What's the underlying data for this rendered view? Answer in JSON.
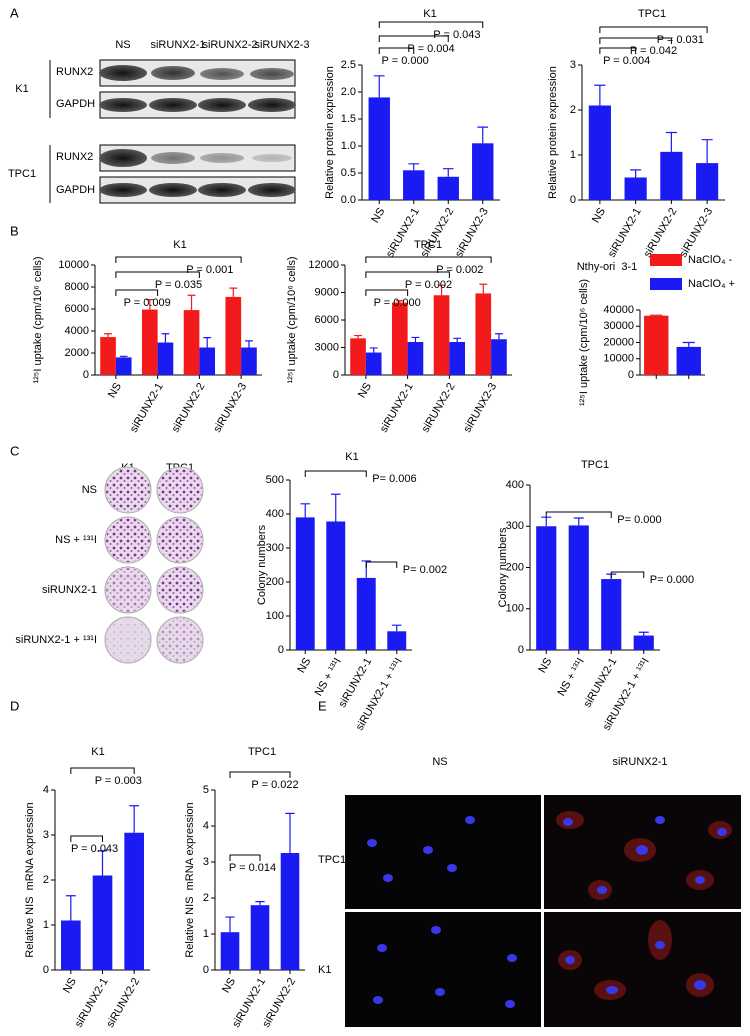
{
  "figure": {
    "panel_labels": [
      "A",
      "B",
      "C",
      "D",
      "E"
    ],
    "blot": {
      "lanes": [
        "NS",
        "siRUNX2-1",
        "siRUNX2-2",
        "siRUNX2-3"
      ],
      "groups": [
        {
          "name": "K1",
          "rows": [
            "RUNX2",
            "GAPDH"
          ]
        },
        {
          "name": "TPC1",
          "rows": [
            "RUNX2",
            "GAPDH"
          ]
        }
      ]
    },
    "colony": {
      "columns": [
        "K1",
        "TPC1"
      ],
      "rows": [
        "NS",
        "NS + ¹³¹I",
        "siRUNX2-1",
        "siRUNX2-1 + ¹³¹I"
      ]
    },
    "immunofluorescence": {
      "columns": [
        "NS",
        "siRUNX2-1"
      ],
      "rows": [
        "TPC1",
        "K1"
      ]
    }
  },
  "chart_data": [
    {
      "type": "bar",
      "title": "K1",
      "y_label": "Relative protein expression",
      "categories": [
        "NS",
        "siRUNX2-1",
        "siRUNX2-2",
        "siRUNX2-3"
      ],
      "values": [
        1.9,
        0.55,
        0.43,
        1.05
      ],
      "errors": [
        0.4,
        0.12,
        0.15,
        0.3
      ],
      "color": "#1a1af2",
      "ylim": [
        0,
        2.5
      ],
      "yticks": [
        {
          "value": 0,
          "label": "0.0"
        },
        0.5,
        {
          "value": 1,
          "label": "1.0"
        },
        1.5,
        {
          "value": 2,
          "label": "2.0"
        },
        2.5
      ],
      "annotations": [
        "P = 0.000",
        "P = 0.004",
        "P = 0.043"
      ]
    },
    {
      "type": "bar",
      "title": "TPC1",
      "y_label": "Relative protein expression",
      "categories": [
        "NS",
        "siRUNX2-1",
        "siRUNX2-2",
        "siRUNX2-3"
      ],
      "values": [
        2.1,
        0.5,
        1.07,
        0.82
      ],
      "errors": [
        0.45,
        0.17,
        0.43,
        0.52
      ],
      "color": "#1a1af2",
      "ylim": [
        0,
        3
      ],
      "yticks": [
        0,
        1,
        2,
        3
      ],
      "annotations": [
        "P = 0.004",
        "P = 0.042",
        "P = 0.031"
      ]
    },
    {
      "type": "bar",
      "title": "K1",
      "y_label": "¹²⁵I uptake (cpm/10⁶ cells)",
      "categories": [
        "NS",
        "siRUNX2-1",
        "siRUNX2-2",
        "siRUNX2-3"
      ],
      "series": [
        {
          "color": "#f21a1a",
          "values": [
            3450,
            5950,
            5900,
            7100
          ],
          "errors": [
            300,
            900,
            1350,
            800
          ]
        },
        {
          "color": "#1a1af2",
          "values": [
            1600,
            2950,
            2500,
            2500
          ],
          "errors": [
            100,
            800,
            900,
            600
          ]
        }
      ],
      "ylim": [
        0,
        10000
      ],
      "yticks": [
        0,
        2000,
        4000,
        6000,
        8000,
        10000
      ],
      "annotations": [
        "P = 0.009",
        "P = 0.035",
        "P = 0.001"
      ]
    },
    {
      "type": "bar",
      "title": "TPC1",
      "y_label": "¹²⁵I uptake (cpm/10⁶ cells)",
      "categories": [
        "NS",
        "siRUNX2-1",
        "siRUNX2-2",
        "siRUNX2-3"
      ],
      "series": [
        {
          "color": "#f21a1a",
          "values": [
            4000,
            7900,
            8700,
            8900
          ],
          "errors": [
            300,
            200,
            1100,
            1000
          ]
        },
        {
          "color": "#1a1af2",
          "values": [
            2450,
            3600,
            3600,
            3900
          ],
          "errors": [
            500,
            500,
            400,
            600
          ]
        }
      ],
      "ylim": [
        0,
        12000
      ],
      "yticks": [
        0,
        3000,
        6000,
        9000,
        12000
      ],
      "annotations": [
        "P = 0.000",
        "P = 0.002",
        "P = 0.002"
      ]
    },
    {
      "type": "bar",
      "title": "Nthy-ori  3-1",
      "y_label": "¹²⁵I uptake (cpm/10⁶ cells)",
      "categories": [
        null,
        null
      ],
      "series": [
        {
          "name": "NaClO₄ -",
          "color": "#f21a1a",
          "values": [
            36500,
            null
          ],
          "errors": [
            300,
            null
          ]
        },
        {
          "name": "NaClO₄ +",
          "color": "#1a1af2",
          "values": [
            null,
            17300
          ],
          "errors": [
            null,
            2700
          ]
        }
      ],
      "ylim": [
        0,
        40000
      ],
      "yticks": [
        0,
        10000,
        20000,
        30000,
        40000
      ],
      "legend": "right"
    },
    {
      "type": "bar",
      "title": "K1",
      "y_label": "Colony numbers",
      "categories": [
        "NS",
        "NS + ¹³¹I",
        "siRUNX2-1",
        "siRUNX2-1 + ¹³¹I"
      ],
      "values": [
        390,
        378,
        212,
        55
      ],
      "errors": [
        40,
        80,
        50,
        18
      ],
      "color": "#1a1af2",
      "ylim": [
        0,
        500
      ],
      "yticks": [
        0,
        100,
        200,
        300,
        400,
        500
      ],
      "annotations": [
        "P= 0.006",
        "P= 0.002"
      ]
    },
    {
      "type": "bar",
      "title": "TPC1",
      "y_label": "Colony numbers",
      "categories": [
        "NS",
        "NS + ¹³¹I",
        "siRUNX2-1",
        "siRUNX2-1 + ¹³¹I"
      ],
      "values": [
        300,
        302,
        172,
        35
      ],
      "errors": [
        22,
        18,
        12,
        8
      ],
      "color": "#1a1af2",
      "ylim": [
        0,
        400
      ],
      "yticks": [
        0,
        100,
        200,
        300,
        400
      ],
      "annotations": [
        "P= 0.000",
        "P= 0.000"
      ]
    },
    {
      "type": "bar",
      "title": "K1",
      "y_label": "Relative NIS  mRNA expression",
      "categories": [
        "NS",
        "siRUNX2-1",
        "siRUNX2-2"
      ],
      "values": [
        1.1,
        2.1,
        3.05
      ],
      "errors": [
        0.55,
        0.55,
        0.6
      ],
      "color": "#1a1af2",
      "ylim": [
        0,
        4
      ],
      "yticks": [
        0,
        1,
        2,
        3,
        4
      ],
      "annotations": [
        "P = 0.043",
        "P = 0.003"
      ]
    },
    {
      "type": "bar",
      "title": "TPC1",
      "y_label": "Relative NIS  mRNA expression",
      "categories": [
        "NS",
        "siRUNX2-1",
        "siRUNX2-2"
      ],
      "values": [
        1.05,
        1.8,
        3.25
      ],
      "errors": [
        0.42,
        0.1,
        1.1
      ],
      "color": "#1a1af2",
      "ylim": [
        0,
        5
      ],
      "yticks": [
        0,
        1,
        2,
        3,
        4,
        5
      ],
      "annotations": [
        "P = 0.014",
        "P = 0.022"
      ]
    }
  ]
}
